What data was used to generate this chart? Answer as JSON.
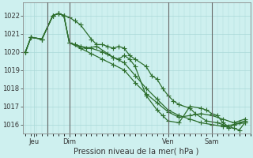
{
  "xlabel": "Pression niveau de la mer( hPa )",
  "bg_color": "#cef0ef",
  "grid_color": "#aad8d8",
  "line_color": "#2d6e2d",
  "ylim": [
    1015.5,
    1022.7
  ],
  "xlim": [
    -0.5,
    41
  ],
  "yticks": [
    1016,
    1017,
    1018,
    1019,
    1020,
    1021,
    1022
  ],
  "xtick_positions": [
    1.5,
    8,
    26,
    34
  ],
  "xtick_labels": [
    "Jeu",
    "Dim",
    "Ven",
    "Sam"
  ],
  "vline_positions": [
    4,
    8,
    26,
    34
  ],
  "series1_x": [
    0,
    1,
    3,
    5,
    6,
    7,
    8,
    9,
    10,
    12,
    13,
    14,
    15,
    16,
    17,
    18,
    19,
    20,
    22,
    23,
    24,
    25,
    26,
    27,
    28,
    30,
    31,
    33,
    35,
    36,
    37,
    38,
    39,
    40
  ],
  "series1_y": [
    1020.0,
    1020.8,
    1020.7,
    1022.0,
    1022.1,
    1022.0,
    1021.9,
    1021.7,
    1021.5,
    1020.7,
    1020.4,
    1020.4,
    1020.3,
    1020.2,
    1020.3,
    1020.2,
    1019.8,
    1019.6,
    1019.2,
    1018.7,
    1018.5,
    1018.0,
    1017.6,
    1017.3,
    1017.1,
    1016.9,
    1016.6,
    1016.2,
    1016.1,
    1016.0,
    1015.8,
    1016.0,
    1016.1,
    1016.2
  ],
  "series2_x": [
    0,
    1,
    3,
    5,
    6,
    7,
    8,
    10,
    12,
    14,
    16,
    18,
    20,
    22,
    24,
    26,
    28,
    30,
    32,
    34,
    36,
    38,
    40
  ],
  "series2_y": [
    1020.0,
    1020.8,
    1020.7,
    1022.0,
    1022.1,
    1022.0,
    1020.5,
    1020.3,
    1020.2,
    1020.0,
    1019.7,
    1019.4,
    1018.7,
    1018.0,
    1017.4,
    1016.8,
    1016.5,
    1016.3,
    1016.1,
    1016.0,
    1015.9,
    1016.0,
    1016.1
  ],
  "series3_x": [
    0,
    1,
    3,
    5,
    6,
    7,
    8,
    10,
    12,
    14,
    16,
    18,
    20,
    22,
    24,
    26,
    28,
    30,
    32,
    34,
    36,
    38,
    40
  ],
  "series3_y": [
    1020.0,
    1020.8,
    1020.7,
    1022.0,
    1022.1,
    1022.0,
    1020.5,
    1020.2,
    1019.9,
    1019.6,
    1019.3,
    1019.0,
    1018.3,
    1017.7,
    1017.2,
    1016.7,
    1016.4,
    1016.5,
    1016.6,
    1016.5,
    1016.3,
    1016.1,
    1016.3
  ],
  "series4_x": [
    0,
    1,
    3,
    5,
    6,
    7,
    8,
    9,
    10,
    11,
    13,
    15,
    16,
    17,
    18,
    19,
    20,
    22,
    24,
    25,
    26,
    28,
    30,
    32,
    33,
    34,
    35,
    36,
    37,
    38,
    39,
    40
  ],
  "series4_y": [
    1020.0,
    1020.8,
    1020.7,
    1022.0,
    1022.1,
    1022.0,
    1020.5,
    1020.4,
    1020.3,
    1020.2,
    1020.3,
    1019.9,
    1019.7,
    1019.6,
    1019.8,
    1019.6,
    1019.2,
    1017.6,
    1016.8,
    1016.5,
    1016.2,
    1016.1,
    1017.0,
    1016.9,
    1016.8,
    1016.6,
    1016.5,
    1016.1,
    1015.9,
    1015.8,
    1015.7,
    1016.1
  ]
}
